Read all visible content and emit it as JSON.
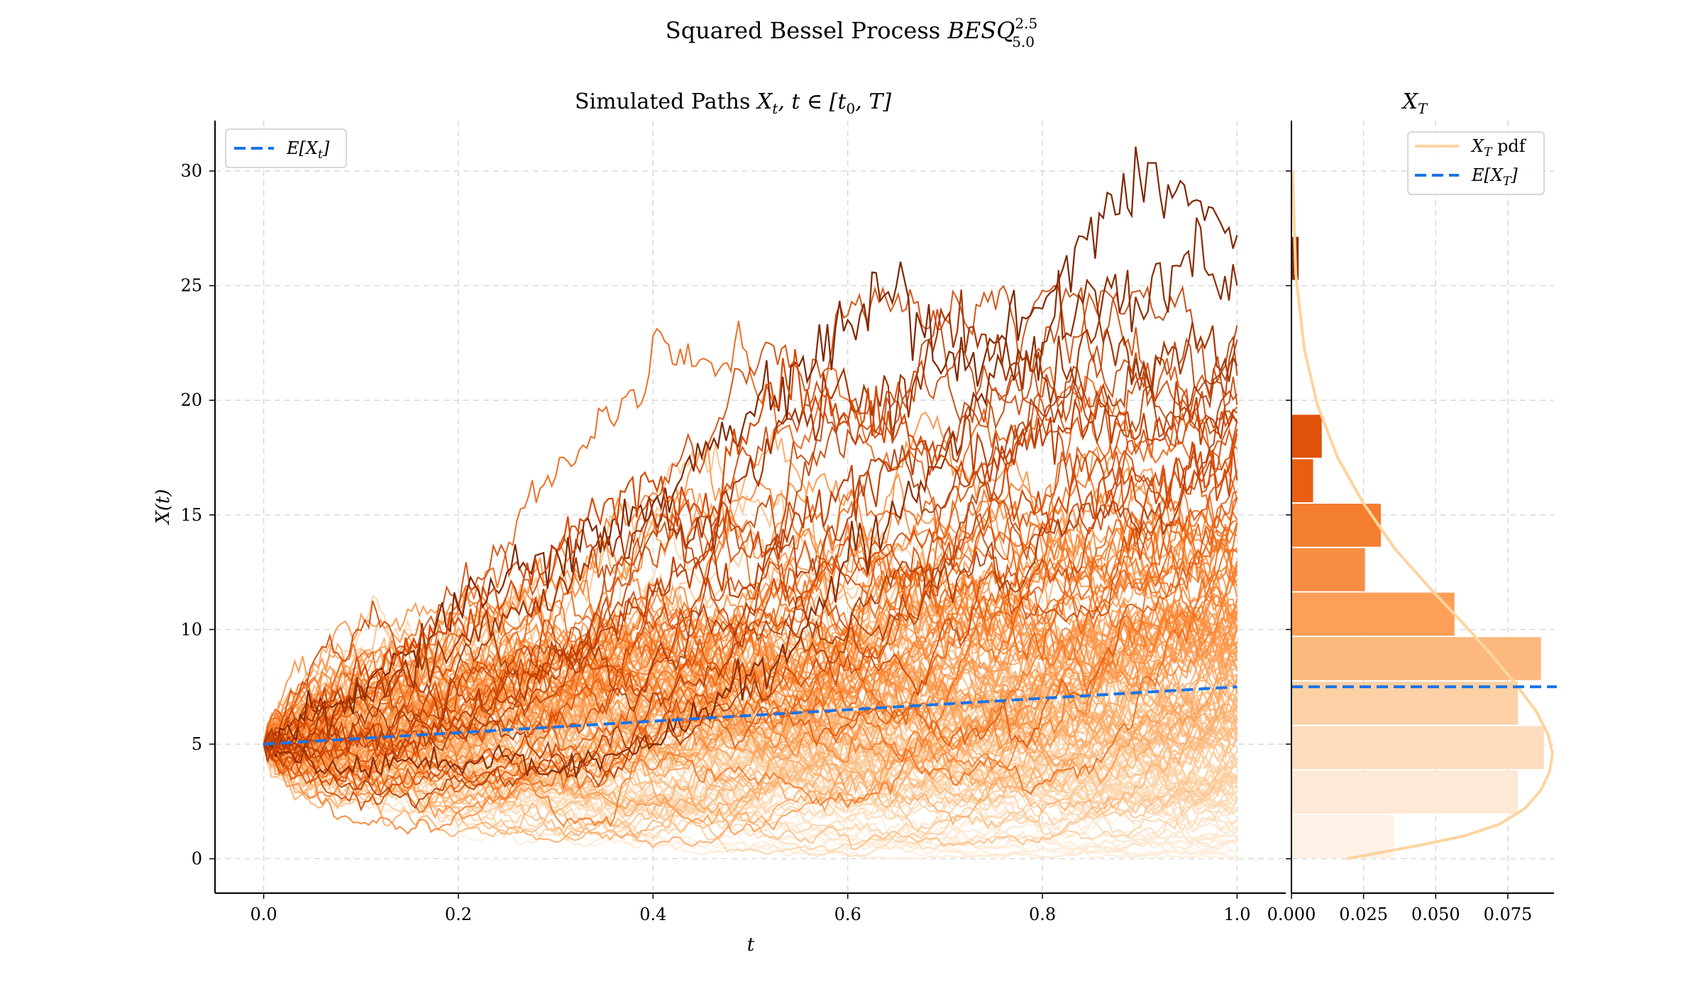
{
  "figure": {
    "suptitle": "Squared Bessel Process BESQ^{2.5}_{5.0}",
    "suptitle_main": "Squared Bessel Process ",
    "suptitle_var": "BESQ",
    "suptitle_sup": "2.5",
    "suptitle_sub": "5.0"
  },
  "chart_data": [
    {
      "type": "line",
      "title": "Simulated Paths X_t, t ∈ [t_0, T]",
      "title_main": "Simulated Paths ",
      "title_math": "X",
      "title_math_sub": "t",
      "title_rest": ", t ∈ [t",
      "title_rest_sub": "0",
      "title_rest_end": ", T]",
      "xlabel": "t",
      "ylabel": "X(t)",
      "xlim": [
        -0.05,
        1.05
      ],
      "ylim": [
        -1.5,
        32.2
      ],
      "xticks": [
        0.0,
        0.2,
        0.4,
        0.6,
        0.8,
        1.0
      ],
      "xtick_labels": [
        "0.0",
        "0.2",
        "0.4",
        "0.6",
        "0.8",
        "1.0"
      ],
      "yticks": [
        0,
        5,
        10,
        15,
        20,
        25,
        30
      ],
      "ytick_labels": [
        "0",
        "5",
        "10",
        "15",
        "20",
        "25",
        "30"
      ],
      "grid": true,
      "legend_position": "top-left",
      "legend": [
        {
          "label": "E[X_t]",
          "style": "dashed",
          "color": "#1a73e8"
        }
      ],
      "legend_label_text": "E[X",
      "legend_label_sub": "t",
      "legend_label_end": "]",
      "x0": 0.0,
      "x1": 1.0,
      "colormap": "Oranges",
      "n_paths_drawn": 150,
      "series": [
        {
          "name": "E[X_t]",
          "x": [
            0.0,
            1.0
          ],
          "y": [
            5.0,
            7.5
          ],
          "color": "#1a73e8",
          "style": "dashed"
        }
      ],
      "highlighted_paths": [
        {
          "x": [
            0.0,
            0.05,
            0.1,
            0.15,
            0.2,
            0.25,
            0.3,
            0.35,
            0.4,
            0.45,
            0.5,
            0.55,
            0.6,
            0.65,
            0.7,
            0.75,
            0.8,
            0.85,
            0.9,
            0.95,
            1.0
          ],
          "y": [
            5.0,
            6.5,
            7.5,
            9.0,
            11.0,
            12.5,
            13.5,
            14.5,
            15.5,
            17.5,
            19.5,
            21.5,
            23.5,
            25.0,
            21.5,
            22.5,
            24.0,
            28.0,
            29.8,
            28.5,
            27.2
          ]
        },
        {
          "x": [
            0.0,
            0.05,
            0.1,
            0.15,
            0.2,
            0.25,
            0.3,
            0.35,
            0.4,
            0.45,
            0.5,
            0.55,
            0.6,
            0.65,
            0.7,
            0.75,
            0.8,
            0.85,
            0.9,
            0.95,
            1.0
          ],
          "y": [
            5.0,
            4.2,
            3.8,
            4.4,
            4.0,
            4.5,
            3.8,
            4.5,
            5.0,
            6.5,
            8.0,
            9.5,
            13.0,
            15.0,
            17.5,
            21.0,
            22.5,
            25.0,
            24.0,
            26.5,
            25.0
          ]
        },
        {
          "x": [
            0.0,
            0.05,
            0.1,
            0.15,
            0.2,
            0.25,
            0.3,
            0.35,
            0.4,
            0.45,
            0.5,
            0.55,
            0.6,
            0.65,
            0.7,
            0.75,
            0.8,
            0.85,
            0.9,
            0.95,
            1.0
          ],
          "y": [
            5.0,
            6.0,
            7.0,
            8.0,
            9.5,
            10.5,
            11.5,
            13.5,
            15.0,
            14.0,
            17.5,
            19.0,
            20.5,
            19.5,
            23.5,
            22.0,
            21.0,
            22.5,
            21.0,
            22.5,
            21.5
          ]
        },
        {
          "x": [
            0.0,
            0.05,
            0.1,
            0.15,
            0.2,
            0.25,
            0.3,
            0.35,
            0.4,
            0.45,
            0.5,
            0.55,
            0.6,
            0.65,
            0.7,
            0.75,
            0.8,
            0.85,
            0.9,
            0.95,
            1.0
          ],
          "y": [
            5.0,
            4.5,
            5.5,
            5.0,
            6.0,
            7.0,
            9.0,
            10.0,
            11.5,
            12.5,
            12.0,
            15.0,
            16.5,
            17.0,
            18.5,
            17.5,
            18.0,
            19.5,
            18.5,
            19.5,
            19.0
          ]
        },
        {
          "x": [
            0.0,
            0.05,
            0.1,
            0.15,
            0.2,
            0.25,
            0.3,
            0.35,
            0.4,
            0.45,
            0.5,
            0.55,
            0.6,
            0.65,
            0.7,
            0.75,
            0.8,
            0.85,
            0.9,
            0.95,
            1.0
          ],
          "y": [
            5.0,
            6.5,
            8.0,
            9.0,
            10.5,
            11.5,
            13.5,
            15.5,
            16.5,
            15.0,
            19.0,
            21.0,
            19.0,
            18.5,
            17.5,
            16.0,
            15.0,
            16.0,
            15.5,
            17.0,
            16.5
          ]
        }
      ]
    },
    {
      "type": "bar",
      "orientation": "horizontal",
      "title": "X_T",
      "title_math": "X",
      "title_math_sub": "T",
      "xlim": [
        0.0,
        0.091
      ],
      "ylim": [
        -1.5,
        32.2
      ],
      "xticks": [
        0.0,
        0.025,
        0.05,
        0.075
      ],
      "xtick_labels": [
        "0.000",
        "0.025",
        "0.050",
        "0.075"
      ],
      "grid": true,
      "legend_position": "top-right",
      "legend": [
        {
          "label": "X_T pdf",
          "style": "solid",
          "color": "#fdd49e"
        },
        {
          "label": "E[X_T]",
          "style": "dashed",
          "color": "#1a73e8"
        }
      ],
      "legend_pdf_text": "X",
      "legend_pdf_sub": "T",
      "legend_pdf_end": " pdf",
      "legend_mean_text": "E[X",
      "legend_mean_sub": "T",
      "legend_mean_end": "]",
      "bin_edges": [
        0.0,
        1.94,
        3.88,
        5.82,
        7.76,
        9.7,
        11.64,
        13.58,
        15.52,
        17.46,
        19.4,
        21.34,
        23.28,
        25.22,
        27.16
      ],
      "densities": [
        0.0355,
        0.0785,
        0.0875,
        0.0785,
        0.0865,
        0.0565,
        0.0255,
        0.031,
        0.0075,
        0.0105,
        0.0,
        0.0,
        0.0,
        0.0025
      ],
      "bar_colors": [
        "#fef2e6",
        "#fde9d6",
        "#fddcbe",
        "#fdd0a6",
        "#fdb97d",
        "#fd9f56",
        "#f98d44",
        "#f47e2f",
        "#e85e13",
        "#e05209",
        "#d94801",
        "#c24003",
        "#a63603",
        "#8c2d04"
      ],
      "mean": 7.5,
      "pdf": {
        "x": [
          0.0192,
          0.03,
          0.045,
          0.06,
          0.072,
          0.081,
          0.0865,
          0.0895,
          0.0905,
          0.089,
          0.085,
          0.0785,
          0.07,
          0.06,
          0.048,
          0.036,
          0.025,
          0.016,
          0.009,
          0.0045,
          0.0015,
          0.0004
        ],
        "y": [
          0.0,
          0.25,
          0.6,
          1.0,
          1.5,
          2.2,
          3.0,
          3.8,
          4.6,
          5.4,
          6.4,
          7.5,
          8.8,
          10.2,
          11.8,
          13.5,
          15.5,
          17.5,
          19.8,
          22.2,
          25.5,
          30.0
        ]
      },
      "pdf_color": "#fdd49e"
    }
  ]
}
